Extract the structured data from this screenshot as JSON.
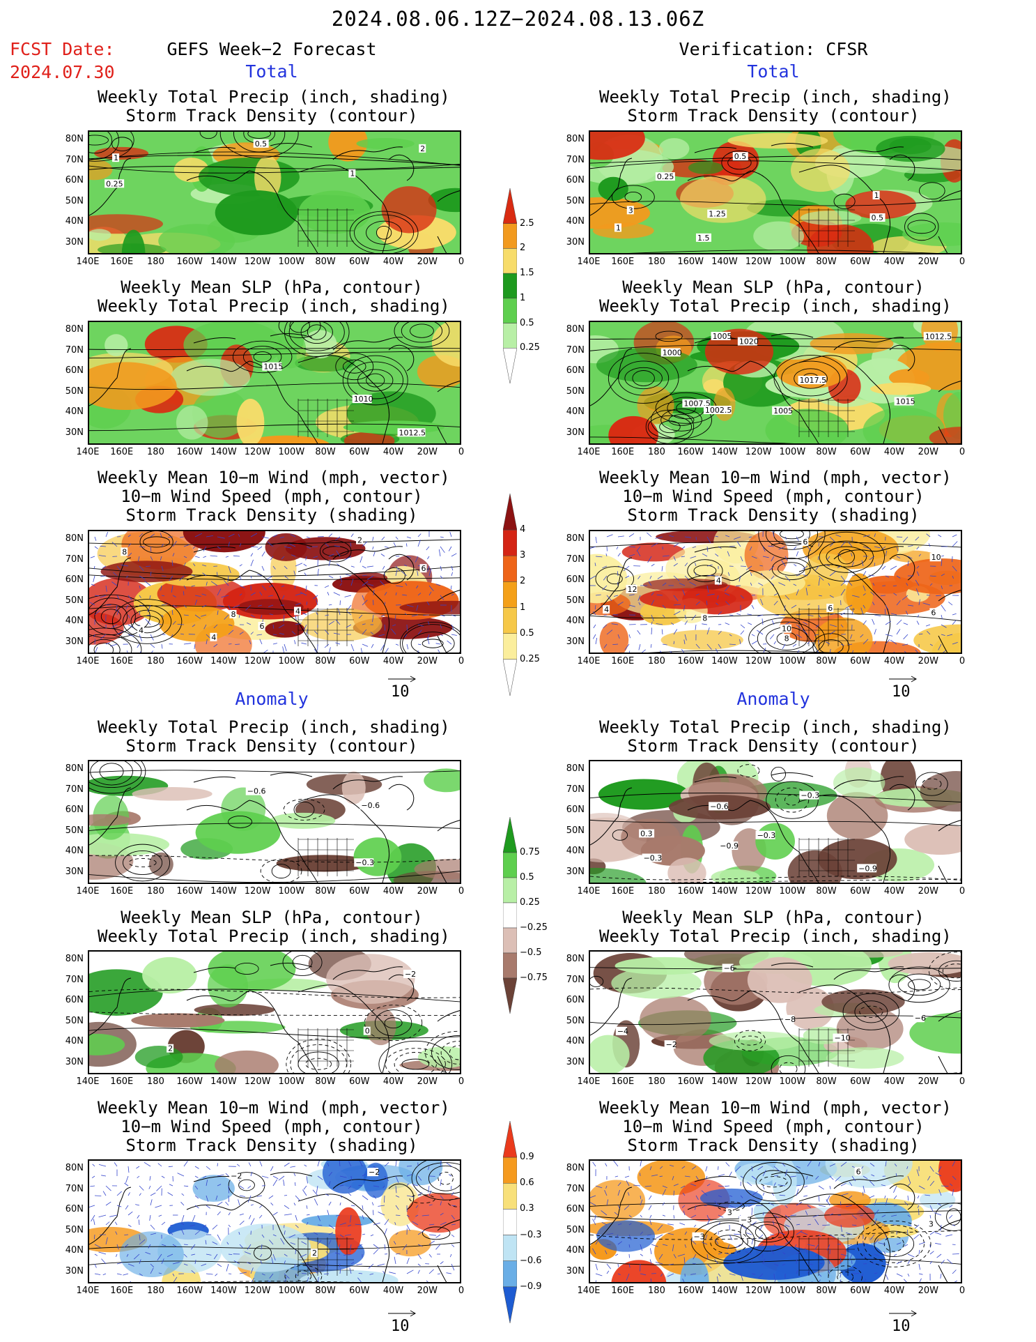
{
  "header": {
    "date_range": "2024.08.06.12Z−2024.08.13.06Z",
    "fcst_label": "FCST Date:",
    "fcst_date": "2024.07.30",
    "left_heading": "GEFS Week−2 Forecast",
    "right_heading": "Verification: CFSR"
  },
  "sections": {
    "total": "Total",
    "anomaly": "Anomaly"
  },
  "panel_titles": {
    "precip_storm": [
      "Weekly Total Precip (inch, shading)",
      "Storm Track Density (contour)"
    ],
    "slp_precip": [
      "Weekly Mean SLP (hPa, contour)",
      "Weekly Total Precip (inch, shading)"
    ],
    "wind_storm": [
      "Weekly Mean 10−m Wind (mph, vector)",
      "10−m Wind Speed (mph, contour)",
      "Storm Track Density (shading)"
    ]
  },
  "axes": {
    "lat_labels": [
      "80N",
      "70N",
      "60N",
      "50N",
      "40N",
      "30N"
    ],
    "lon_labels": [
      "140E",
      "160E",
      "180",
      "160W",
      "140W",
      "120W",
      "100W",
      "80W",
      "60W",
      "40W",
      "20W",
      "0"
    ]
  },
  "vector_reference": "10",
  "colorbars": {
    "total_precip": {
      "labels": [
        "2.5",
        "2",
        "1.5",
        "1",
        "0.5",
        "0.25"
      ],
      "colors": [
        "#d92b12",
        "#f29a1e",
        "#f7dc6a",
        "#1e9a1e",
        "#5ecf4e",
        "#b8efa6",
        "#ffffff"
      ]
    },
    "total_storm": {
      "labels": [
        "4",
        "3",
        "2",
        "1",
        "0.5",
        "0.25"
      ],
      "colors": [
        "#8c1212",
        "#d42414",
        "#ee6418",
        "#f4a018",
        "#f6c848",
        "#fbee9c",
        "#ffffff"
      ]
    },
    "anomaly_precip": {
      "labels": [
        "0.75",
        "0.5",
        "0.25",
        "−0.25",
        "−0.5",
        "−0.75"
      ],
      "colors": [
        "#1e9a1e",
        "#5ecf4e",
        "#b8efa6",
        "#ffffff",
        "#dcbfb6",
        "#a87a6c",
        "#6b4237"
      ]
    },
    "anomaly_storm": {
      "labels": [
        "0.9",
        "0.6",
        "0.3",
        "−0.3",
        "−0.6",
        "−0.9"
      ],
      "colors": [
        "#ea3a1c",
        "#f59a1e",
        "#f8e07a",
        "#ffffff",
        "#bfe4f4",
        "#6aaee6",
        "#1e5cd2"
      ]
    }
  },
  "contour_labels": {
    "left_precip_total": [
      "0.25",
      "0.5",
      "1",
      "2",
      "1"
    ],
    "left_slp_total": [
      "1015",
      "1012.5",
      "1010"
    ],
    "left_wind_total": [
      "6",
      "4",
      "2",
      "4",
      "6",
      "8",
      "4",
      "8"
    ],
    "right_precip_total": [
      "1",
      "0.5",
      "1.25",
      "0.5",
      "0.25",
      "1",
      "3",
      "1.5"
    ],
    "right_slp_total": [
      "1005",
      "1007.5",
      "1005",
      "1012.5",
      "1015",
      "1020",
      "1002.5",
      "1000",
      "1017.5"
    ],
    "right_wind_total": [
      "6",
      "6",
      "4",
      "8",
      "6",
      "4",
      "10",
      "12",
      "10",
      "8"
    ],
    "left_precip_anom": [
      "−0.6",
      "−0.3",
      "−0.6"
    ],
    "left_slp_anom": [
      "−2",
      "2",
      "0"
    ],
    "left_wind_anom": [
      "−2",
      "2",
      "−2"
    ],
    "right_precip_anom": [
      "−0.3",
      "0.3",
      "−0.9",
      "−0.3",
      "−0.6",
      "−0.3",
      "−0.9"
    ],
    "right_slp_anom": [
      "−6",
      "−8",
      "−6",
      "−10",
      "−4",
      "−2"
    ],
    "right_wind_anom": [
      "−3",
      "3",
      "3",
      "−3",
      "6"
    ]
  }
}
